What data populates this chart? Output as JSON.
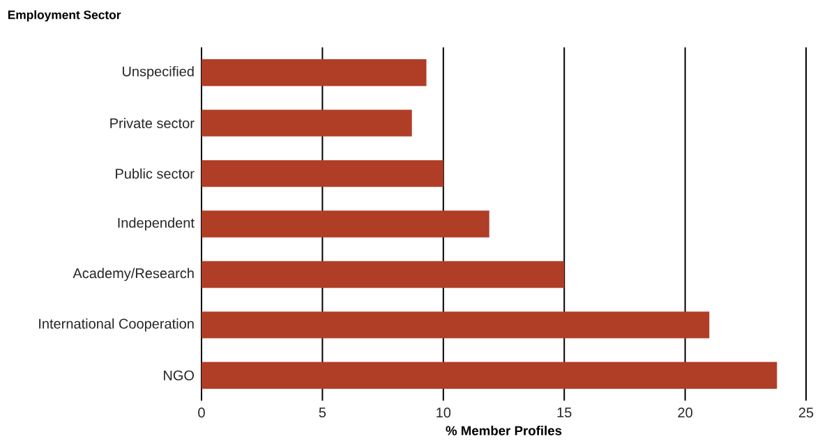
{
  "chart_data": {
    "type": "bar",
    "orientation": "horizontal",
    "title": "Employment Sector",
    "xlabel": "% Member Profiles",
    "categories": [
      "Unspecified",
      "Private sector",
      "Public sector",
      "Independent",
      "Academy/Research",
      "International Cooperation",
      "NGO"
    ],
    "values": [
      9.3,
      8.7,
      10.0,
      11.9,
      15.0,
      21.0,
      23.8
    ],
    "color": "#b03d26",
    "xlim": [
      0,
      25
    ],
    "xticks": [
      0,
      5,
      10,
      15,
      20,
      25
    ],
    "grid": "x"
  }
}
